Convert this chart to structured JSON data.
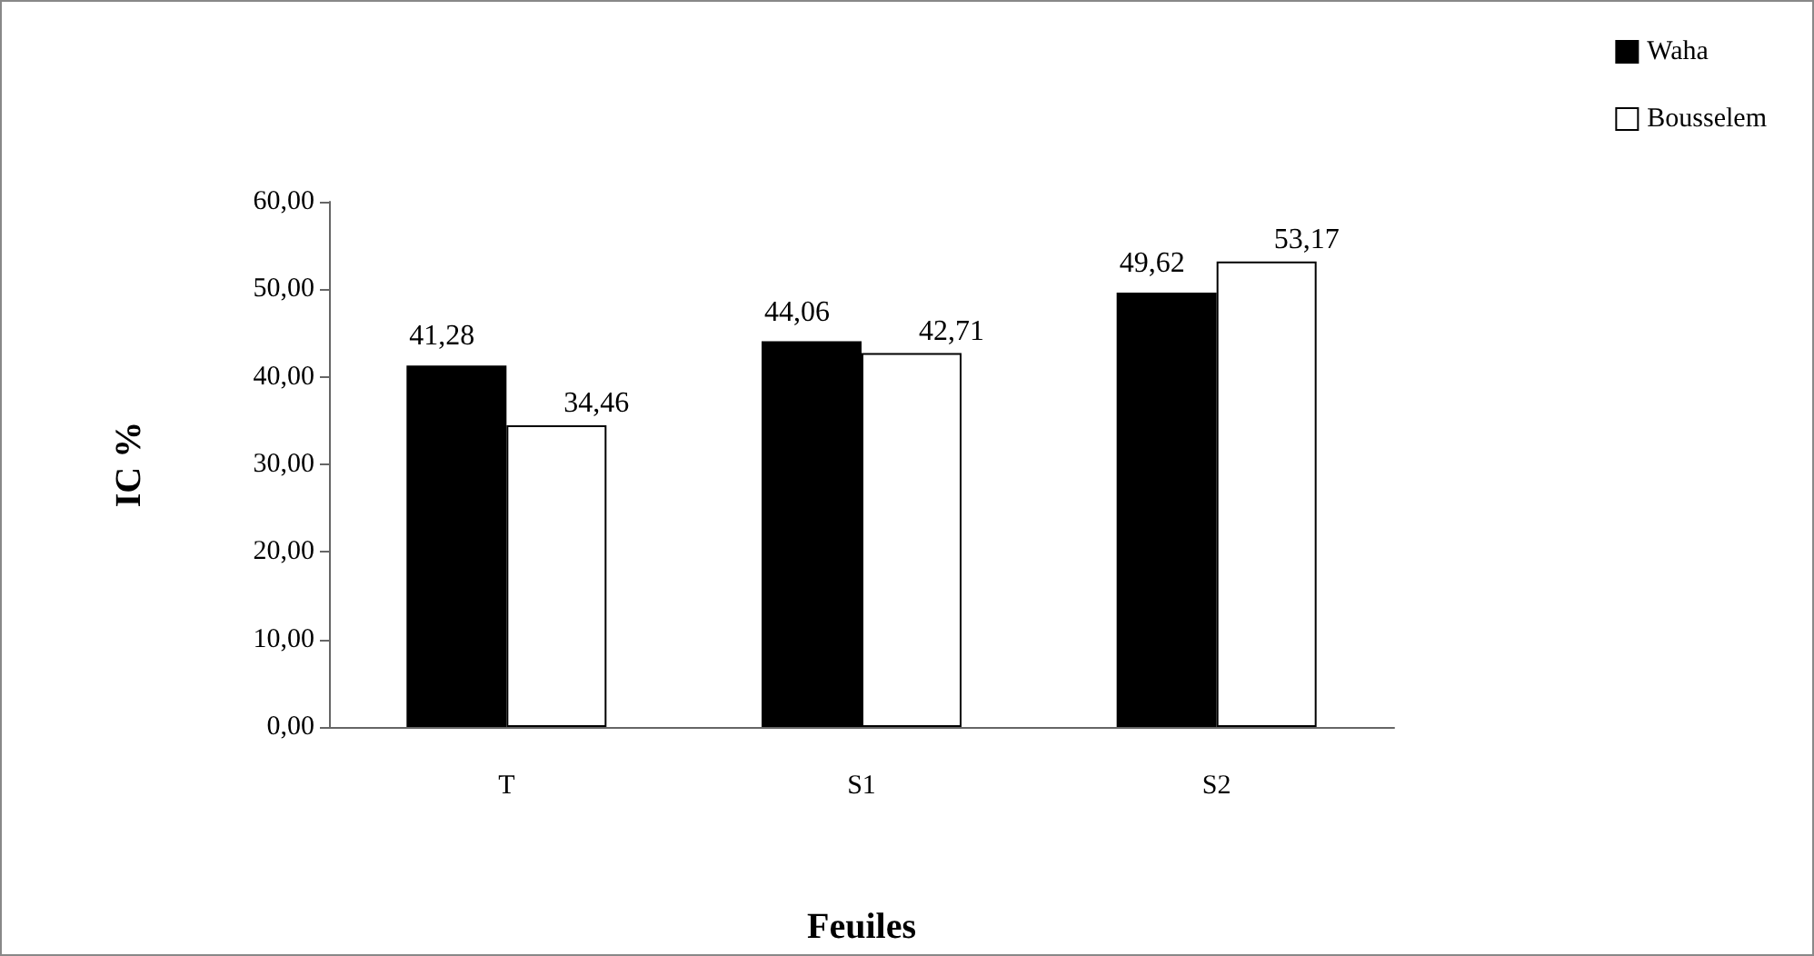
{
  "chart_data": {
    "type": "bar",
    "xlabel": "Feuiles",
    "ylabel": "IC %",
    "categories": [
      "T",
      "S1",
      "S2"
    ],
    "series": [
      {
        "name": "Waha",
        "color": "#000000",
        "values": [
          41.28,
          44.06,
          49.62
        ],
        "value_labels": [
          "41,28",
          "44,06",
          "49,62"
        ]
      },
      {
        "name": "Bousselem",
        "color": "#ffffff",
        "values": [
          34.46,
          42.71,
          53.17
        ],
        "value_labels": [
          "34,46",
          "42,71",
          "53,17"
        ]
      }
    ],
    "ylim": [
      0,
      60
    ],
    "yticks": [
      {
        "value": 0,
        "label": "0,00"
      },
      {
        "value": 10,
        "label": "10,00"
      },
      {
        "value": 20,
        "label": "20,00"
      },
      {
        "value": 30,
        "label": "30,00"
      },
      {
        "value": 40,
        "label": "40,00"
      },
      {
        "value": 50,
        "label": "50,00"
      },
      {
        "value": 60,
        "label": "60,00"
      }
    ],
    "grid": false,
    "legend": "top right"
  }
}
